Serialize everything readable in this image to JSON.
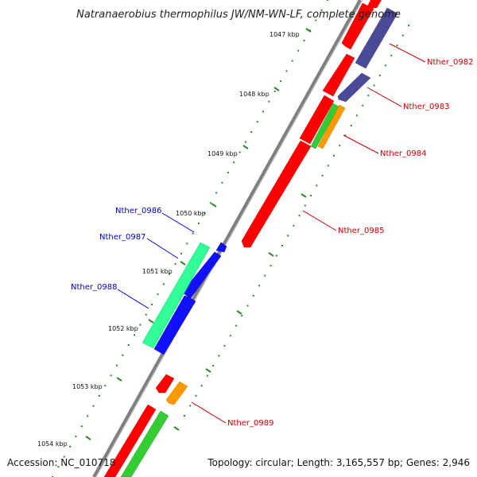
{
  "title": "Natranaerobius thermophilus JW/NM-WN-LF, complete genome",
  "accession": "Accession: NC_010718",
  "topology": "Topology: circular; Length: 3,165,557 bp; Genes: 2,946",
  "colors": {
    "background": "#ffffff",
    "backbone": "#7f7f7f",
    "tick": "#2a8a2a",
    "label_forward": "#cc0000",
    "label_reverse": "#0000cc",
    "red_gene": "#ff0000",
    "blue_gene": "#1010ff",
    "teal_gene": "#33ff99",
    "green_gene": "#33cc33",
    "orange_gene": "#ff9900",
    "slate_gene": "#4a4a99"
  },
  "ticks": [
    {
      "label": "1047 kbp"
    },
    {
      "label": "1048 kbp"
    },
    {
      "label": "1049 kbp"
    },
    {
      "label": "1050 kbp"
    },
    {
      "label": "1051 kbp"
    },
    {
      "label": "1052 kbp"
    },
    {
      "label": "1053 kbp"
    },
    {
      "label": "1054 kbp"
    }
  ],
  "genes": [
    {
      "name": "Nther_0982",
      "strand": "forward"
    },
    {
      "name": "Nther_0983",
      "strand": "forward"
    },
    {
      "name": "Nther_0984",
      "strand": "forward"
    },
    {
      "name": "Nther_0985",
      "strand": "forward"
    },
    {
      "name": "Nther_0986",
      "strand": "reverse"
    },
    {
      "name": "Nther_0987",
      "strand": "reverse"
    },
    {
      "name": "Nther_0988",
      "strand": "reverse"
    },
    {
      "name": "Nther_0989",
      "strand": "forward"
    }
  ]
}
